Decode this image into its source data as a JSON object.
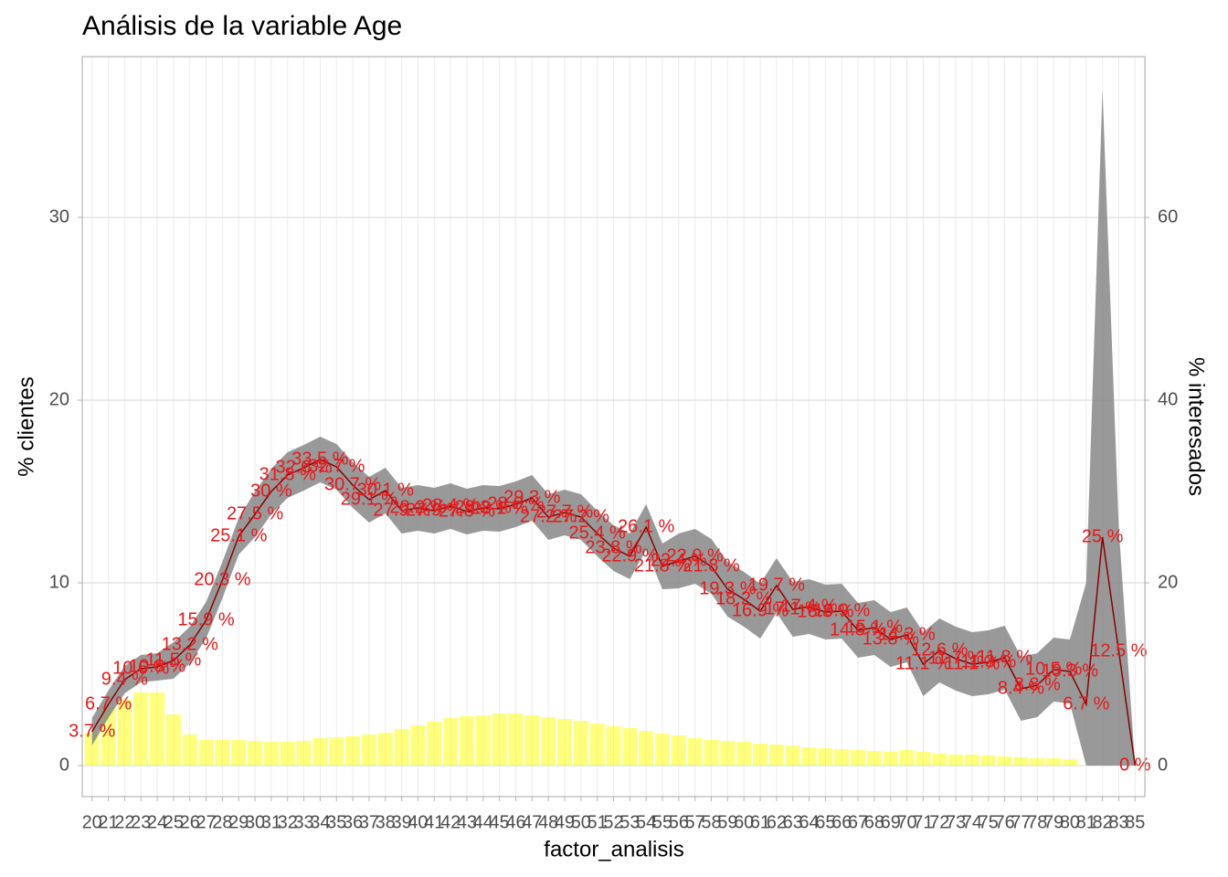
{
  "chart_data": {
    "type": "bar-line",
    "title": "Análisis de la variable Age",
    "x_label": "factor_analisis",
    "y_label": "% clientes",
    "y2_label": "% interesados",
    "categories": [
      "20",
      "21",
      "22",
      "23",
      "24",
      "25",
      "26",
      "27",
      "28",
      "29",
      "30",
      "31",
      "32",
      "33",
      "34",
      "35",
      "36",
      "37",
      "38",
      "39",
      "40",
      "41",
      "42",
      "43",
      "44",
      "45",
      "46",
      "47",
      "48",
      "49",
      "50",
      "51",
      "52",
      "53",
      "54",
      "55",
      "56",
      "57",
      "58",
      "59",
      "60",
      "61",
      "62",
      "63",
      "64",
      "65",
      "66",
      "67",
      "68",
      "69",
      "70",
      "71",
      "72",
      "73",
      "74",
      "75",
      "76",
      "77",
      "78",
      "79",
      "80",
      "81",
      "82",
      "83",
      "85"
    ],
    "ylim": [
      -1.7,
      38.8
    ],
    "yticks": [
      0,
      10,
      20,
      30
    ],
    "y2lim": [
      -3.4,
      77.6
    ],
    "y2ticks": [
      0,
      20,
      40,
      60
    ],
    "grid": true,
    "series": [
      {
        "type": "bar",
        "color": "#ffff00",
        "opacity": 0.5,
        "values": [
          1.8,
          3.2,
          3.6,
          4.0,
          4.0,
          2.8,
          1.7,
          1.4,
          1.4,
          1.4,
          1.35,
          1.3,
          1.3,
          1.35,
          1.5,
          1.55,
          1.6,
          1.7,
          1.8,
          2.0,
          2.2,
          2.4,
          2.6,
          2.7,
          2.75,
          2.85,
          2.85,
          2.75,
          2.65,
          2.55,
          2.45,
          2.3,
          2.15,
          2.05,
          1.9,
          1.75,
          1.65,
          1.5,
          1.4,
          1.35,
          1.3,
          1.2,
          1.15,
          1.1,
          1.0,
          0.95,
          0.9,
          0.85,
          0.8,
          0.75,
          0.85,
          0.75,
          0.65,
          0.6,
          0.6,
          0.55,
          0.5,
          0.45,
          0.4,
          0.4,
          0.35,
          0.01,
          0.01,
          0.01,
          0.01
        ]
      },
      {
        "type": "line",
        "axis": "y2",
        "color": "#8b0000",
        "label_color": "#e41a1c",
        "band_color": "#808080",
        "values": [
          3.7,
          6.7,
          9.4,
          10.6,
          10.8,
          11.5,
          13.2,
          15.9,
          20.3,
          25.1,
          27.5,
          30,
          31.8,
          32.6,
          33.5,
          32.7,
          30.7,
          29.1,
          30.1,
          27.9,
          28.2,
          27.9,
          28.4,
          27.8,
          28.2,
          28.1,
          28.6,
          29.3,
          27.2,
          27.7,
          27.2,
          25.4,
          23.8,
          22.9,
          26.1,
          21.8,
          22.4,
          22.9,
          21.8,
          19.3,
          18.2,
          16.9,
          19.7,
          17.1,
          17.4,
          16.8,
          16.9,
          14.8,
          15.1,
          13.8,
          14.3,
          11.1,
          12.6,
          11.7,
          11.1,
          11.3,
          11.8,
          8.4,
          8.8,
          10.5,
          10.3,
          6.7,
          25,
          12.5,
          0
        ],
        "value_labels": [
          "3.7 %",
          "6.7 %",
          "9.4 %",
          "10.6 %",
          "10.8 %",
          "11.5 %",
          "13.2 %",
          "15.9 %",
          "20.3 %",
          "25.1 %",
          "27.5 %",
          "30 %",
          "31.8 %",
          "32.6 %",
          "33.5 %",
          "32.7 %",
          "30.7 %",
          "29.1 %",
          "30.1 %",
          "27.9 %",
          "28.2 %",
          "27.9 %",
          "28.4 %",
          "27.8 %",
          "28.2 %",
          "28.1 %",
          "28.6 %",
          "29.3 %",
          "27.2 %",
          "27.7 %",
          "27.2 %",
          "25.4 %",
          "23.8 %",
          "22.9 %",
          "26.1 %",
          "21.8 %",
          "22.4 %",
          "22.9 %",
          "21.8 %",
          "19.3 %",
          "18.2 %",
          "16.9 %",
          "19.7 %",
          "17.1 %",
          "17.4 %",
          "16.8 %",
          "16.9 %",
          "14.8 %",
          "15.1 %",
          "13.8 %",
          "14.3 %",
          "11.1 %",
          "12.6 %",
          "11.7 %",
          "11.1 %",
          "11.3 %",
          "11.8 %",
          "8.4 %",
          "8.8 %",
          "10.5 %",
          "10.3 %",
          "6.7 %",
          "25 %",
          "12.5 %",
          "0 %"
        ],
        "lower": [
          2.2,
          5.2,
          7.9,
          9.1,
          9.3,
          9.5,
          11.2,
          13.9,
          18.3,
          23.1,
          25,
          27.5,
          29.3,
          30.1,
          31,
          30.2,
          28.2,
          26.6,
          27.6,
          25.4,
          25.7,
          25.4,
          25.9,
          25.3,
          25.7,
          25.6,
          26.1,
          26.8,
          24.7,
          25.2,
          24.7,
          22.9,
          21.3,
          20.4,
          23.6,
          19.3,
          19.4,
          19.9,
          18.8,
          16.3,
          15.2,
          13.9,
          16.7,
          14.1,
          14.4,
          13.8,
          13.9,
          11.8,
          12.1,
          10.8,
          11.3,
          7.6,
          9.1,
          8.2,
          7.6,
          7.8,
          8.3,
          4.9,
          5.3,
          7,
          6.8,
          0,
          0,
          0,
          0
        ],
        "upper": [
          5.2,
          8.2,
          10.9,
          12.1,
          12.3,
          13.5,
          15.2,
          17.9,
          22.3,
          27.1,
          30,
          32.5,
          34.3,
          35.1,
          36,
          35.2,
          33.2,
          31.6,
          32.6,
          30.4,
          30.7,
          30.4,
          30.9,
          30.3,
          30.7,
          30.6,
          31.1,
          31.8,
          29.7,
          30.2,
          29.7,
          27.9,
          26.3,
          25.4,
          28.6,
          24.3,
          25.4,
          25.9,
          24.8,
          22.3,
          21.2,
          19.9,
          22.7,
          20.1,
          20.4,
          19.8,
          19.9,
          17.8,
          18.1,
          16.8,
          17.3,
          14.6,
          16.1,
          15.2,
          14.6,
          14.8,
          15.3,
          11.9,
          12.3,
          14,
          13.8,
          20,
          74,
          26,
          0
        ]
      }
    ]
  }
}
